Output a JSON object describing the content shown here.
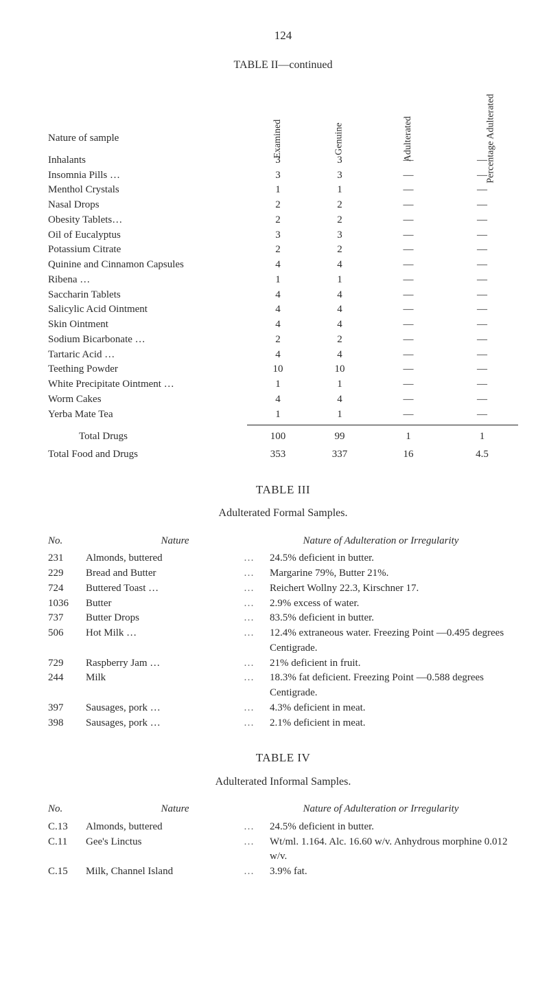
{
  "page_number": "124",
  "table2": {
    "title": "TABLE II—continued",
    "headers": {
      "nature": "Nature of sample",
      "examined": "Examined",
      "genuine": "Genuine",
      "adulterated": "Adulterated",
      "percentage": "Percentage\nAdulterated"
    },
    "rows": [
      {
        "nature": "Inhalants",
        "examined": "3",
        "genuine": "3",
        "adult": "—",
        "perc": "—"
      },
      {
        "nature": "Insomnia Pills …",
        "examined": "3",
        "genuine": "3",
        "adult": "—",
        "perc": "—"
      },
      {
        "nature": "Menthol Crystals",
        "examined": "1",
        "genuine": "1",
        "adult": "—",
        "perc": "—"
      },
      {
        "nature": "Nasal Drops",
        "examined": "2",
        "genuine": "2",
        "adult": "—",
        "perc": "—"
      },
      {
        "nature": "Obesity Tablets…",
        "examined": "2",
        "genuine": "2",
        "adult": "—",
        "perc": "—"
      },
      {
        "nature": "Oil of Eucalyptus",
        "examined": "3",
        "genuine": "3",
        "adult": "—",
        "perc": "—"
      },
      {
        "nature": "Potassium Citrate",
        "examined": "2",
        "genuine": "2",
        "adult": "—",
        "perc": "—"
      },
      {
        "nature": "Quinine and Cinnamon Capsules",
        "examined": "4",
        "genuine": "4",
        "adult": "—",
        "perc": "—"
      },
      {
        "nature": "Ribena …",
        "examined": "1",
        "genuine": "1",
        "adult": "—",
        "perc": "—"
      },
      {
        "nature": "Saccharin Tablets",
        "examined": "4",
        "genuine": "4",
        "adult": "—",
        "perc": "—"
      },
      {
        "nature": "Salicylic Acid Ointment",
        "examined": "4",
        "genuine": "4",
        "adult": "—",
        "perc": "—"
      },
      {
        "nature": "Skin Ointment",
        "examined": "4",
        "genuine": "4",
        "adult": "—",
        "perc": "—"
      },
      {
        "nature": "Sodium Bicarbonate  …",
        "examined": "2",
        "genuine": "2",
        "adult": "—",
        "perc": "—"
      },
      {
        "nature": "Tartaric Acid   …",
        "examined": "4",
        "genuine": "4",
        "adult": "—",
        "perc": "—"
      },
      {
        "nature": "Teething Powder",
        "examined": "10",
        "genuine": "10",
        "adult": "—",
        "perc": "—"
      },
      {
        "nature": "White Precipitate Ointment …",
        "examined": "1",
        "genuine": "1",
        "adult": "—",
        "perc": "—"
      },
      {
        "nature": "Worm Cakes",
        "examined": "4",
        "genuine": "4",
        "adult": "—",
        "perc": "—"
      },
      {
        "nature": "Yerba Mate Tea",
        "examined": "1",
        "genuine": "1",
        "adult": "—",
        "perc": "—"
      }
    ],
    "totals": {
      "label": "Total Drugs",
      "examined": "100",
      "genuine": "99",
      "adult": "1",
      "perc": "1"
    },
    "grand": {
      "label": "Total Food and Drugs",
      "examined": "353",
      "genuine": "337",
      "adult": "16",
      "perc": "4.5"
    }
  },
  "table3": {
    "title": "TABLE III",
    "subtitle": "Adulterated Formal Samples.",
    "headers": {
      "no": "No.",
      "nature": "Nature",
      "desc": "Nature of Adulteration or Irregularity"
    },
    "rows": [
      {
        "no": "231",
        "nature": "Almonds, buttered",
        "desc": "24.5% deficient in butter."
      },
      {
        "no": "229",
        "nature": "Bread and Butter",
        "desc": "Margarine 79%, Butter 21%."
      },
      {
        "no": "724",
        "nature": "Buttered Toast   …",
        "desc": "Reichert Wollny 22.3, Kirschner 17."
      },
      {
        "no": "1036",
        "nature": "Butter",
        "desc": "2.9% excess of water."
      },
      {
        "no": "737",
        "nature": "Butter Drops",
        "desc": "83.5% deficient in butter."
      },
      {
        "no": "506",
        "nature": "Hot Milk  …",
        "desc": "12.4% extraneous water.   Freezing Point —0.495 degrees Centigrade."
      },
      {
        "no": "729",
        "nature": "Raspberry Jam   …",
        "desc": "21% deficient in fruit."
      },
      {
        "no": "244",
        "nature": "Milk",
        "desc": "18.3% fat deficient.  Freezing Point —0.588 degrees Centigrade."
      },
      {
        "no": "397",
        "nature": "Sausages, pork   …",
        "desc": "4.3% deficient in meat."
      },
      {
        "no": "398",
        "nature": "Sausages, pork   …",
        "desc": "2.1% deficient in meat."
      }
    ]
  },
  "table4": {
    "title": "TABLE IV",
    "subtitle": "Adulterated Informal Samples.",
    "headers": {
      "no": "No.",
      "nature": "Nature",
      "desc": "Nature of Adulteration or Irregularity"
    },
    "rows": [
      {
        "no": "C.13",
        "nature": "Almonds, buttered",
        "desc": "24.5% deficient in butter."
      },
      {
        "no": "C.11",
        "nature": "Gee's Linctus",
        "desc": "Wt/ml. 1.164.  Alc. 16.60 w/v.  Anhydrous morphine 0.012 w/v."
      },
      {
        "no": "C.15",
        "nature": "Milk, Channel Island",
        "desc": "3.9% fat."
      }
    ]
  }
}
